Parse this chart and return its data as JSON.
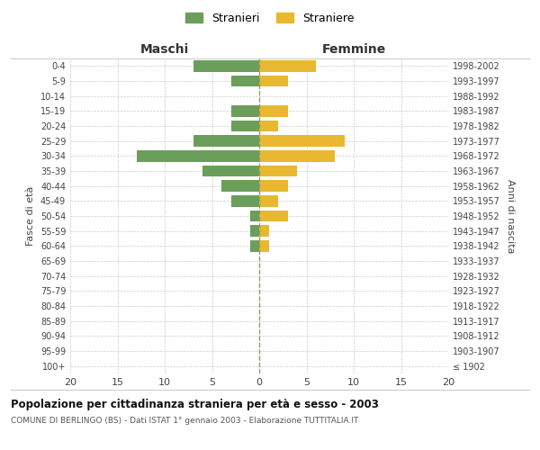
{
  "age_groups": [
    "100+",
    "95-99",
    "90-94",
    "85-89",
    "80-84",
    "75-79",
    "70-74",
    "65-69",
    "60-64",
    "55-59",
    "50-54",
    "45-49",
    "40-44",
    "35-39",
    "30-34",
    "25-29",
    "20-24",
    "15-19",
    "10-14",
    "5-9",
    "0-4"
  ],
  "birth_years": [
    "≤ 1902",
    "1903-1907",
    "1908-1912",
    "1913-1917",
    "1918-1922",
    "1923-1927",
    "1928-1932",
    "1933-1937",
    "1938-1942",
    "1943-1947",
    "1948-1952",
    "1953-1957",
    "1958-1962",
    "1963-1967",
    "1968-1972",
    "1973-1977",
    "1978-1982",
    "1983-1987",
    "1988-1992",
    "1993-1997",
    "1998-2002"
  ],
  "males": [
    0,
    0,
    0,
    0,
    0,
    0,
    0,
    0,
    1,
    1,
    1,
    3,
    4,
    6,
    13,
    7,
    3,
    3,
    0,
    3,
    7
  ],
  "females": [
    0,
    0,
    0,
    0,
    0,
    0,
    0,
    0,
    1,
    1,
    3,
    2,
    3,
    4,
    8,
    9,
    2,
    3,
    0,
    3,
    6
  ],
  "male_color": "#6a9e5a",
  "female_color": "#e8b830",
  "background_color": "#ffffff",
  "grid_color": "#cccccc",
  "center_line_color": "#999966",
  "xlim": 20,
  "title": "Popolazione per cittadinanza straniera per età e sesso - 2003",
  "subtitle": "COMUNE DI BERLINGO (BS) - Dati ISTAT 1° gennaio 2003 - Elaborazione TUTTITALIA.IT",
  "ylabel_left": "Fasce di età",
  "ylabel_right": "Anni di nascita",
  "xlabel_left": "Maschi",
  "xlabel_right": "Femmine",
  "legend_male": "Stranieri",
  "legend_female": "Straniere"
}
